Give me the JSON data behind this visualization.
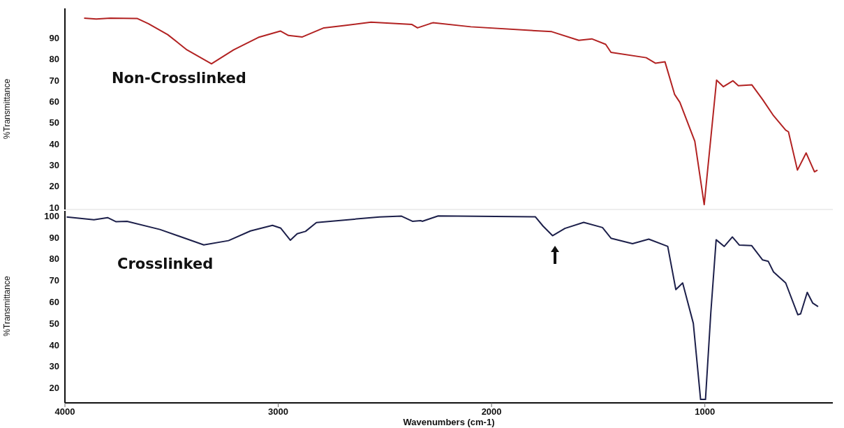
{
  "chart_data": [
    {
      "type": "line",
      "ylabel": "%Transmittance",
      "xlim": [
        4000,
        400
      ],
      "xticks": [
        4000,
        3000,
        2000,
        1000
      ],
      "ylim": [
        9,
        104
      ],
      "yticks": [
        10,
        20,
        30,
        40,
        50,
        60,
        70,
        80,
        90
      ],
      "tick_labels": "y",
      "grid": false,
      "legend": false,
      "marker": "none",
      "series": [
        {
          "name": "Non-Crosslinked",
          "color": "#b22222",
          "x": [
            3910,
            3853,
            3788,
            3660,
            3609,
            3518,
            3428,
            3313,
            3209,
            3093,
            2990,
            2952,
            2887,
            2786,
            2695,
            2565,
            2373,
            2347,
            2288,
            2275,
            2097,
            1718,
            1591,
            1530,
            1465,
            1440,
            1275,
            1231,
            1187,
            1142,
            1117,
            1047,
            1003,
            945,
            913,
            868,
            843,
            780,
            729,
            678,
            621,
            608,
            566,
            525,
            486,
            472
          ],
          "values": [
            99.4,
            99,
            99.4,
            99.2,
            96.8,
            91.6,
            84.4,
            77.8,
            84.4,
            90.3,
            93.3,
            91.2,
            90.5,
            94.8,
            95.8,
            97.5,
            96.4,
            94.8,
            96.8,
            97.2,
            95.3,
            93,
            88.9,
            89.6,
            87,
            83.2,
            80.7,
            78.1,
            78.8,
            63.4,
            59.6,
            41.2,
            11.3,
            70.1,
            67,
            69.8,
            67.5,
            67.9,
            60.9,
            53.3,
            46.5,
            45.7,
            27.6,
            35.7,
            26.8,
            27.6
          ]
        }
      ]
    },
    {
      "type": "line",
      "ylabel": "%Transmittance",
      "xlabel": "Wavenumbers (cm-1)",
      "xlim": [
        4000,
        400
      ],
      "xticks": [
        4000,
        3000,
        2000,
        1000
      ],
      "ylim": [
        13,
        103
      ],
      "yticks": [
        20,
        30,
        40,
        50,
        60,
        70,
        80,
        90,
        100
      ],
      "grid": false,
      "legend": false,
      "marker": "none",
      "series": [
        {
          "name": "Crosslinked",
          "color": "#1c1f4a",
          "x": [
            3992,
            3864,
            3800,
            3760,
            3709,
            3555,
            3349,
            3233,
            3130,
            3027,
            2988,
            2943,
            2911,
            2872,
            2821,
            2653,
            2525,
            2422,
            2371,
            2332,
            2325,
            2250,
            1795,
            1758,
            1714,
            1656,
            1568,
            1480,
            1440,
            1339,
            1263,
            1174,
            1136,
            1104,
            1054,
            1020,
            997,
            972,
            947,
            909,
            871,
            838,
            781,
            729,
            703,
            678,
            621,
            564,
            551,
            520,
            494,
            469
          ],
          "values": [
            99.5,
            98.2,
            99.2,
            97.3,
            97.5,
            93.7,
            86.5,
            88.5,
            93,
            95.6,
            94.3,
            88.7,
            91.7,
            92.8,
            96.9,
            98.4,
            99.5,
            99.9,
            97.5,
            97.8,
            97.5,
            100,
            99.6,
            95.2,
            90.8,
            94.2,
            97,
            94.6,
            89.6,
            87.1,
            89.2,
            85.8,
            65.7,
            68.8,
            50,
            14.6,
            14.6,
            55,
            88.9,
            85.8,
            90.2,
            86.4,
            86.2,
            79.5,
            78.9,
            73.9,
            68.8,
            54,
            54.4,
            64.4,
            59.4,
            57.8
          ]
        }
      ]
    }
  ]
}
